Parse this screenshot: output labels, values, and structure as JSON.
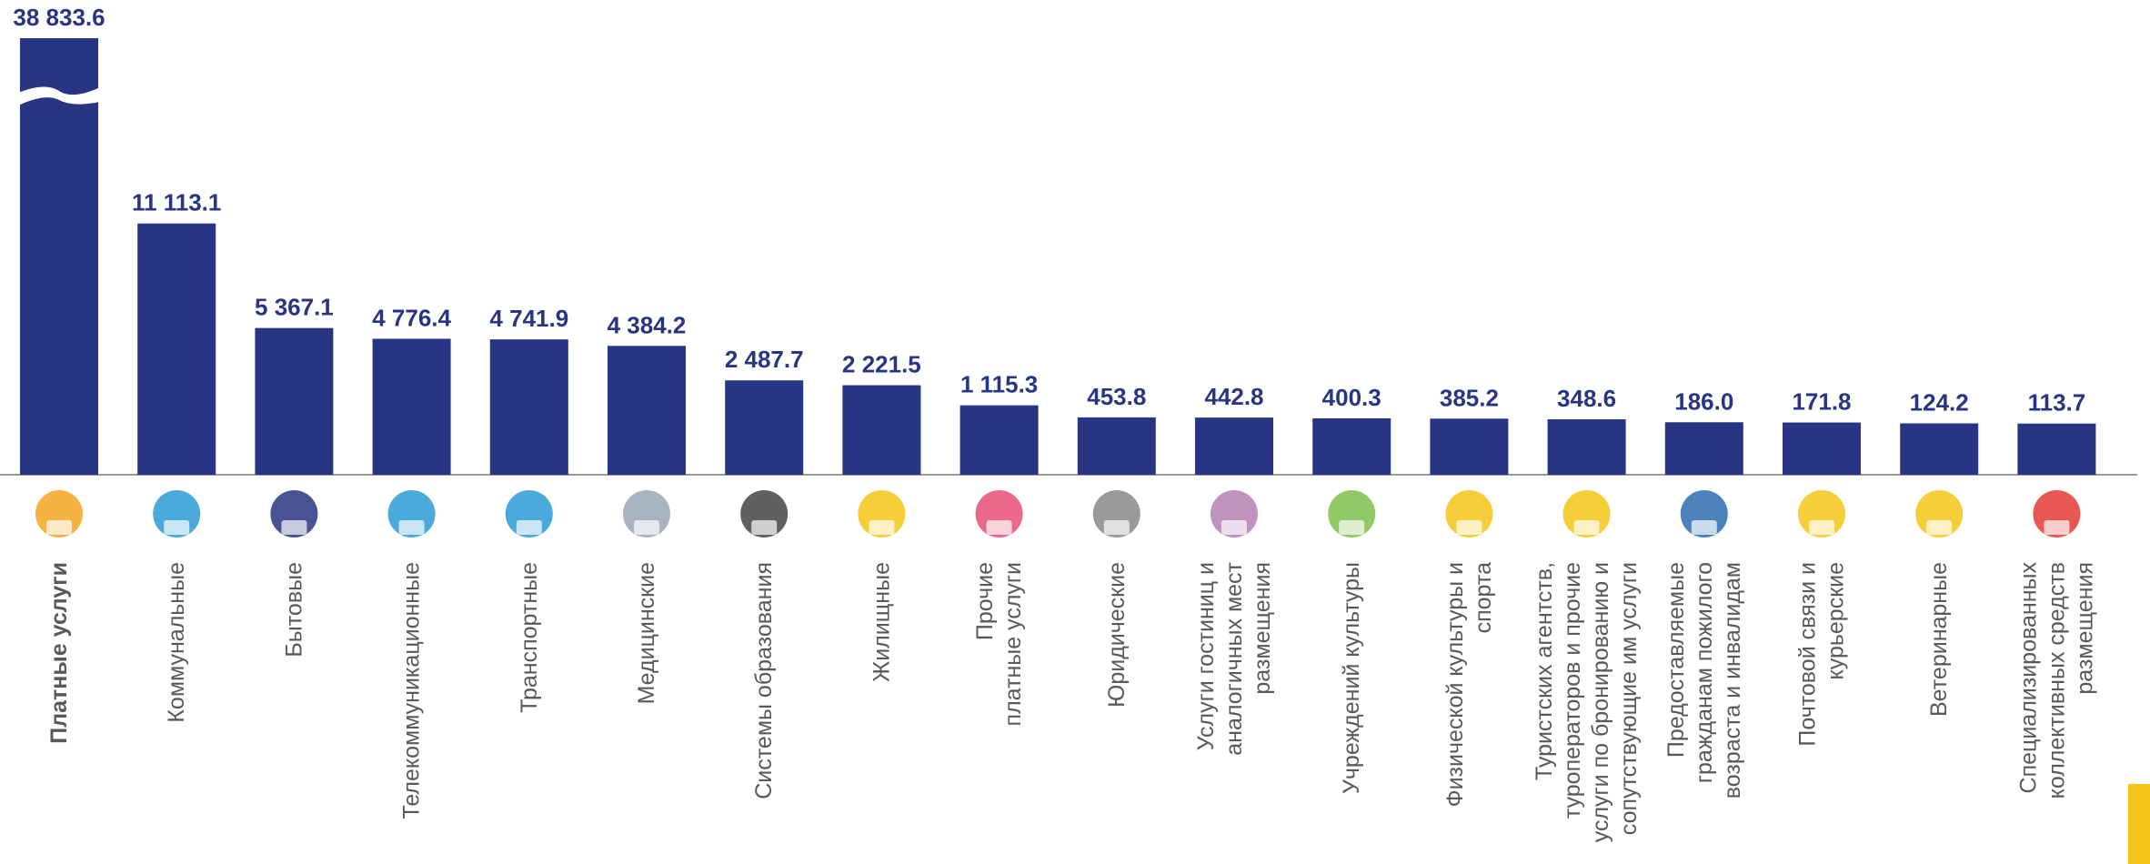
{
  "chart_data": {
    "type": "bar",
    "categories": [
      [
        "Платные  услуги"
      ],
      [
        "Коммунальные"
      ],
      [
        "Бытовые"
      ],
      [
        "Телекоммуникационные"
      ],
      [
        "Транспортные"
      ],
      [
        "Медицинские"
      ],
      [
        "Системы образования"
      ],
      [
        "Жилищные"
      ],
      [
        "Прочие",
        "платные услуги"
      ],
      [
        "Юридические"
      ],
      [
        "Услуги гостиниц и",
        "аналогичных мест",
        "размещения"
      ],
      [
        "Учреждений культуры"
      ],
      [
        "Физической культуры и",
        "спорта"
      ],
      [
        "Туристских агентств,",
        "туроператоров и прочие",
        "услуги по бронированию и",
        "сопутствующие им услуги"
      ],
      [
        "Предоставляемые",
        "гражданам пожилого",
        "возраста и инвалидам"
      ],
      [
        "Почтовой связи и",
        "курьерские"
      ],
      [
        "Ветеринарные"
      ],
      [
        "Специализированных",
        "коллективных средств",
        "размещения"
      ]
    ],
    "values": [
      38833.6,
      11113.1,
      5367.1,
      4776.4,
      4741.9,
      4384.2,
      2487.7,
      2221.5,
      1115.3,
      453.8,
      442.8,
      400.3,
      385.2,
      348.6,
      186.0,
      171.8,
      124.2,
      113.7
    ],
    "value_labels": [
      "38 833.6",
      "11 113.1",
      "5 367.1",
      "4 776.4",
      "4 741.9",
      "4 384.2",
      "2 487.7",
      "2 221.5",
      "1 115.3",
      "453.8",
      "442.8",
      "400.3",
      "385.2",
      "348.6",
      "186.0",
      "171.8",
      "124.2",
      "113.7"
    ],
    "color": "#283583"
  }
}
